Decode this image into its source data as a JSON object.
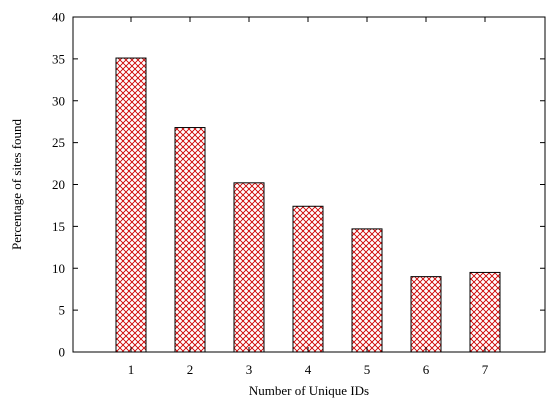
{
  "chart_data": {
    "type": "bar",
    "title": "",
    "xlabel": "Number of Unique IDs",
    "ylabel": "Percentage of sites found",
    "categories": [
      "1",
      "2",
      "3",
      "4",
      "5",
      "6",
      "7"
    ],
    "values": [
      35.1,
      26.8,
      20.2,
      17.4,
      14.7,
      9.0,
      9.5
    ],
    "ylim": [
      0,
      40
    ],
    "yticks": [
      0,
      5,
      10,
      15,
      20,
      25,
      30,
      35,
      40
    ],
    "grid": false,
    "legend": "none",
    "bar_fill": "crosshatch",
    "bar_color": "#cc0000"
  }
}
